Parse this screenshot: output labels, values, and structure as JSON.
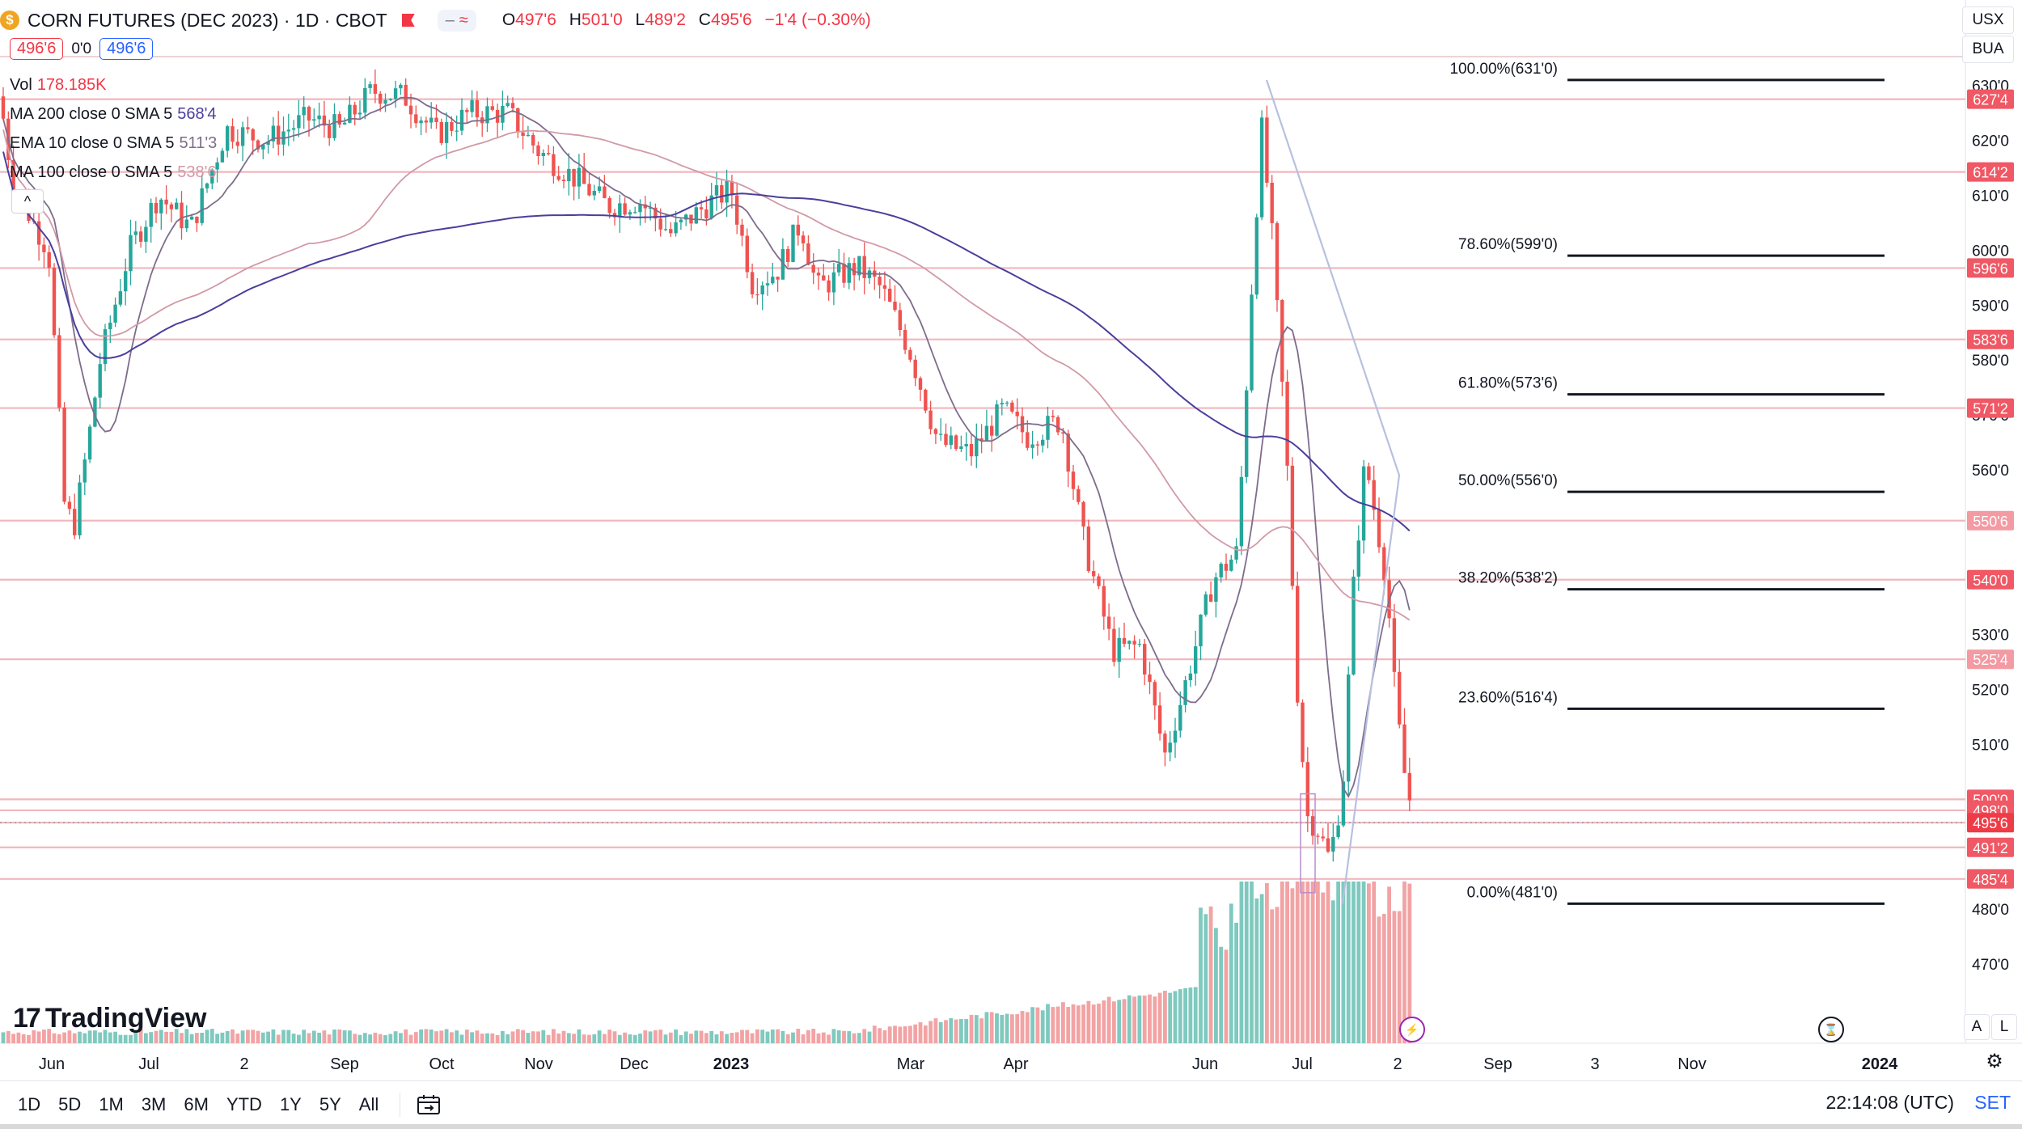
{
  "header": {
    "coin_glyph": "$",
    "symbol": "CORN FUTURES (DEC 2023) · 1D · CBOT",
    "mode_dash": "–",
    "mode_wave": "≈",
    "ohlc": {
      "o_label": "O",
      "o": "497'6",
      "h_label": "H",
      "h": "501'0",
      "l_label": "L",
      "l": "489'2",
      "c_label": "C",
      "c": "495'6",
      "change": "−1'4 (−0.30%)"
    },
    "bid": "496'6",
    "spread": "0'0",
    "ask": "496'6"
  },
  "legend": [
    {
      "name": "Vol",
      "value": "178.185K",
      "color": "#f23645"
    },
    {
      "name": "MA 200 close 0 SMA 5",
      "value": "568'4",
      "color": "#4a3f9c"
    },
    {
      "name": "EMA 10 close 0 SMA 5",
      "value": "511'3",
      "color": "#7e6c8c"
    },
    {
      "name": "MA 100 close 0 SMA 5",
      "value": "538'6",
      "color": "#d19aa6"
    }
  ],
  "collapse_glyph": "^",
  "top_right": {
    "currency": "USX",
    "unit": "BUA"
  },
  "chart_data": {
    "type": "candlestick",
    "y_axis": {
      "min": 465,
      "max": 633,
      "ticks": [
        "630'0",
        "620'0",
        "610'0",
        "600'0",
        "590'0",
        "580'0",
        "570'0",
        "560'0",
        "530'0",
        "520'0",
        "510'0",
        "480'0",
        "470'0"
      ]
    },
    "x_axis_labels": [
      "Jun",
      "Jul",
      "2",
      "Sep",
      "Oct",
      "Nov",
      "Dec",
      "2023",
      "Mar",
      "Apr",
      "Jun",
      "Jul",
      "2",
      "Sep",
      "3",
      "Nov",
      "2024"
    ],
    "horizontal_levels": [
      "627'4",
      "614'2",
      "596'6",
      "583'6",
      "571'2",
      "550'6",
      "540'0",
      "525'4",
      "500'0",
      "498'0",
      "495'6",
      "491'2",
      "485'4"
    ],
    "fibonacci": [
      {
        "label": "100.00%(631'0)",
        "price": 631.0
      },
      {
        "label": "78.60%(599'0)",
        "price": 599.0
      },
      {
        "label": "61.80%(573'6)",
        "price": 573.75
      },
      {
        "label": "50.00%(556'0)",
        "price": 556.0
      },
      {
        "label": "38.20%(538'2)",
        "price": 538.25
      },
      {
        "label": "23.60%(516'4)",
        "price": 516.5
      },
      {
        "label": "0.00%(481'0)",
        "price": 481.0
      }
    ],
    "volume_label": "178.185K",
    "last_price": 495.75
  },
  "watermark": {
    "text": "TradingView"
  },
  "bottom_buttons": {
    "auto": "A",
    "log": "L"
  },
  "toolbar": {
    "timeframes": [
      "1D",
      "5D",
      "1M",
      "3M",
      "6M",
      "YTD",
      "1Y",
      "5Y",
      "All"
    ],
    "clock": "22:14:08 (UTC)",
    "session": "SET"
  }
}
